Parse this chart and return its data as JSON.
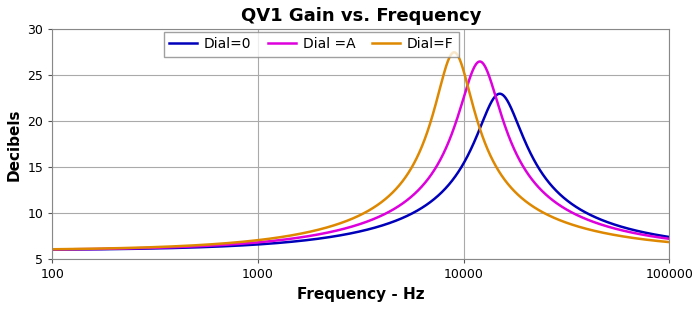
{
  "title": "QV1 Gain vs. Frequency",
  "xlabel": "Frequency - Hz",
  "ylabel": "Decibels",
  "xlim": [
    100,
    100000
  ],
  "ylim": [
    5,
    30
  ],
  "yticks": [
    5,
    10,
    15,
    20,
    25,
    30
  ],
  "background_color": "#ffffff",
  "grid_color": "#aaaaaa",
  "legend_labels": [
    "Dial=0",
    "Dial =A",
    "Dial=F"
  ],
  "line_colors": [
    "#0000bb",
    "#dd00dd",
    "#dd8800"
  ],
  "curve_params": [
    {
      "f0": 15000,
      "gain_peak": 23.0,
      "Q": 1.8,
      "base": 6.0
    },
    {
      "f0": 12000,
      "gain_peak": 26.5,
      "Q": 2.0,
      "base": 6.0
    },
    {
      "f0": 9000,
      "gain_peak": 27.5,
      "Q": 2.2,
      "base": 6.0
    }
  ],
  "title_fontsize": 13,
  "label_fontsize": 11,
  "legend_fontsize": 10,
  "linewidth": 1.8
}
